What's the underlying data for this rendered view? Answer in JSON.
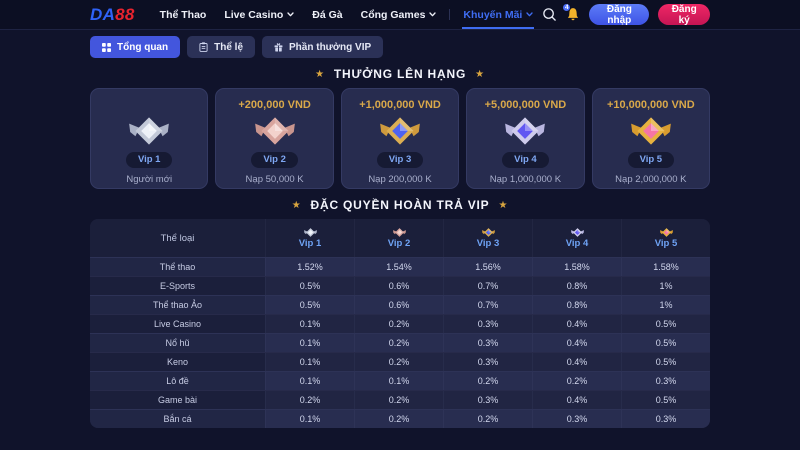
{
  "navbar": {
    "logo": {
      "part1": "DA",
      "part2": "88"
    },
    "items": [
      {
        "key": "sports",
        "label": "Thể Thao",
        "dropdown": false,
        "active": false
      },
      {
        "key": "live-casino",
        "label": "Live Casino",
        "dropdown": true,
        "active": false
      },
      {
        "key": "cockfight",
        "label": "Đá Gà",
        "dropdown": false,
        "active": false
      },
      {
        "key": "games",
        "label": "Cổng Games",
        "dropdown": true,
        "active": false
      },
      {
        "key": "promotions",
        "label": "Khuyến Mãi",
        "dropdown": true,
        "active": true
      }
    ],
    "notification_count": "4",
    "login_label": "Đăng nhập",
    "register_label": "Đăng ký"
  },
  "tabs": [
    {
      "key": "overview",
      "label": "Tổng quan",
      "icon": "grid-icon",
      "active": true
    },
    {
      "key": "rules",
      "label": "Thể lệ",
      "icon": "clipboard-icon",
      "active": false
    },
    {
      "key": "vip-rewards",
      "label": "Phần thưởng VIP",
      "icon": "gift-icon",
      "active": false
    }
  ],
  "sections": {
    "level_up_bonus": "THƯỞNG LÊN HẠNG",
    "vip_cashback": "ĐẶC QUYỀN HOÀN TRẢ VIP"
  },
  "vip_cards": [
    {
      "bonus": "",
      "level": "Vip 1",
      "requirement": "Người mới",
      "medal": {
        "wing": "#aab1c6",
        "body": "#c3c9d8",
        "gem": "#eef1f8"
      }
    },
    {
      "bonus": "+200,000 VND",
      "level": "Vip 2",
      "requirement": "Nạp 50,000 K",
      "medal": {
        "wing": "#c9958e",
        "body": "#d8a49d",
        "gem": "#f3d2cc"
      }
    },
    {
      "bonus": "+1,000,000 VND",
      "level": "Vip 3",
      "requirement": "Nạp 200,000 K",
      "medal": {
        "wing": "#cf9a3d",
        "body": "#dcae52",
        "gem": "#4f63f0"
      }
    },
    {
      "bonus": "+5,000,000 VND",
      "level": "Vip 4",
      "requirement": "Nạp 1,000,000 K",
      "medal": {
        "wing": "#b9b6e0",
        "body": "#cecbec",
        "gem": "#6157f2"
      }
    },
    {
      "bonus": "+10,000,000 VND",
      "level": "Vip 5",
      "requirement": "Nạp 2,000,000 K",
      "medal": {
        "wing": "#d89c2f",
        "body": "#e7b23f",
        "gem": "#f575a5"
      }
    }
  ],
  "cashback_table": {
    "header": [
      "Thể loại",
      "Vip 1",
      "Vip 2",
      "Vip 3",
      "Vip 4",
      "Vip 5"
    ],
    "rows": [
      {
        "category": "Thể thao",
        "values": [
          "1.52%",
          "1.54%",
          "1.56%",
          "1.58%",
          "1.58%"
        ]
      },
      {
        "category": "E-Sports",
        "values": [
          "0.5%",
          "0.6%",
          "0.7%",
          "0.8%",
          "1%"
        ]
      },
      {
        "category": "Thể thao Ảo",
        "values": [
          "0.5%",
          "0.6%",
          "0.7%",
          "0.8%",
          "1%"
        ]
      },
      {
        "category": "Live Casino",
        "values": [
          "0.1%",
          "0.2%",
          "0.3%",
          "0.4%",
          "0.5%"
        ]
      },
      {
        "category": "Nổ hũ",
        "values": [
          "0.1%",
          "0.2%",
          "0.3%",
          "0.4%",
          "0.5%"
        ]
      },
      {
        "category": "Keno",
        "values": [
          "0.1%",
          "0.2%",
          "0.3%",
          "0.4%",
          "0.5%"
        ]
      },
      {
        "category": "Lô đề",
        "values": [
          "0.1%",
          "0.1%",
          "0.2%",
          "0.2%",
          "0.3%"
        ]
      },
      {
        "category": "Game bài",
        "values": [
          "0.2%",
          "0.2%",
          "0.3%",
          "0.4%",
          "0.5%"
        ]
      },
      {
        "category": "Bắn cá",
        "values": [
          "0.1%",
          "0.2%",
          "0.2%",
          "0.3%",
          "0.3%"
        ]
      }
    ]
  },
  "colors": {
    "brand_blue": "#2f62f7",
    "brand_red": "#e8232e",
    "accent_blue": "#3f6df3",
    "accent_gold": "#d9a84a",
    "bell_gold": "#f3b32b",
    "register_pink": "#e01e5e"
  }
}
